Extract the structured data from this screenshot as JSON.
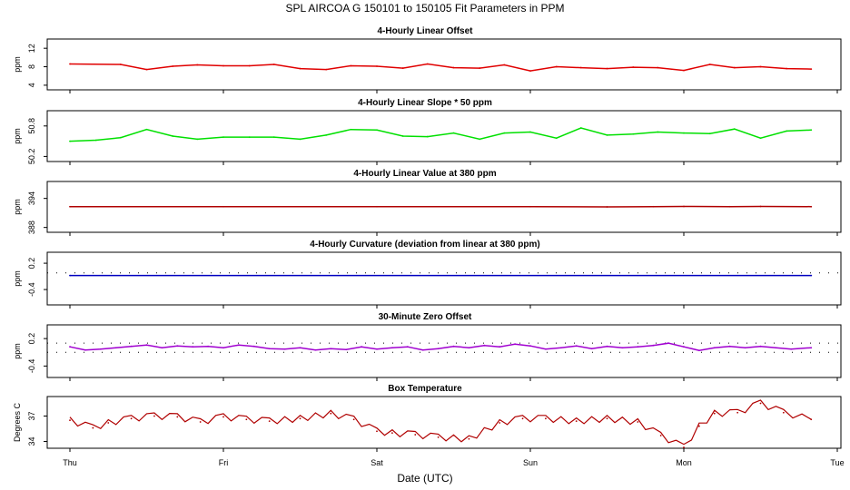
{
  "title": "SPL   AIRCOA G   150101 to 150105   Fit Parameters in PPM",
  "xlabel": "Date (UTC)",
  "chart_data": {
    "type": "line",
    "x_ticks": [
      "Thu",
      "Fri",
      "Sat",
      "Sun",
      "Mon",
      "Tue"
    ],
    "x_range_days": [
      0,
      5
    ],
    "panels": [
      {
        "title": "4-Hourly Linear Offset",
        "ylabel": "ppm",
        "yticks": [
          "4",
          "8",
          "12"
        ],
        "ytick_values": [
          4,
          8,
          12
        ],
        "ylim": [
          3,
          14
        ],
        "color": "#e00000",
        "style": "line",
        "reflines": [],
        "x": [
          0,
          0.33,
          0.5,
          0.67,
          0.83,
          1.0,
          1.17,
          1.33,
          1.5,
          1.67,
          1.83,
          2.0,
          2.17,
          2.33,
          2.5,
          2.67,
          2.83,
          3.0,
          3.17,
          3.33,
          3.5,
          3.67,
          3.83,
          4.0,
          4.17,
          4.33,
          4.5,
          4.67,
          4.83
        ],
        "y": [
          8.6,
          8.5,
          7.4,
          8.1,
          8.4,
          8.2,
          8.2,
          8.5,
          7.6,
          7.4,
          8.2,
          8.1,
          7.7,
          8.6,
          7.8,
          7.7,
          8.4,
          7.1,
          8.0,
          7.8,
          7.6,
          7.9,
          7.8,
          7.2,
          8.5,
          7.8,
          8.0,
          7.6,
          7.5
        ]
      },
      {
        "title": "4-Hourly Linear Slope * 50 ppm",
        "ylabel": "ppm",
        "yticks": [
          "50.2",
          "50.8"
        ],
        "ytick_values": [
          50.2,
          50.8
        ],
        "ylim": [
          50.1,
          51.1
        ],
        "color": "#00e000",
        "style": "line",
        "reflines": [],
        "x": [
          0,
          0.17,
          0.33,
          0.5,
          0.67,
          0.83,
          1.0,
          1.17,
          1.33,
          1.5,
          1.67,
          1.83,
          2.0,
          2.17,
          2.33,
          2.5,
          2.67,
          2.83,
          3.0,
          3.17,
          3.33,
          3.5,
          3.67,
          3.83,
          4.0,
          4.17,
          4.33,
          4.5,
          4.67,
          4.83
        ],
        "y": [
          50.5,
          50.52,
          50.57,
          50.73,
          50.6,
          50.54,
          50.58,
          50.58,
          50.58,
          50.54,
          50.62,
          50.73,
          50.72,
          50.6,
          50.59,
          50.66,
          50.54,
          50.66,
          50.68,
          50.56,
          50.76,
          50.62,
          50.64,
          50.68,
          50.66,
          50.65,
          50.74,
          50.56,
          50.7,
          50.72
        ]
      },
      {
        "title": "4-Hourly Linear Value at 380 ppm",
        "ylabel": "ppm",
        "yticks": [
          "388",
          "394"
        ],
        "ytick_values": [
          388,
          394
        ],
        "ylim": [
          387,
          397.5
        ],
        "color": "#b00000",
        "style": "line",
        "reflines": [],
        "x": [
          0,
          1,
          2,
          3,
          3.5,
          3.8,
          4.0,
          4.3,
          4.5,
          4.83
        ],
        "y": [
          392.3,
          392.3,
          392.3,
          392.3,
          392.25,
          392.3,
          392.35,
          392.3,
          392.35,
          392.3
        ]
      },
      {
        "title": "4-Hourly Curvature (deviation from linear at 380 ppm)",
        "ylabel": "ppm",
        "yticks": [
          "-0.4",
          "0.2"
        ],
        "ytick_values": [
          -0.4,
          0.2
        ],
        "ylim": [
          -0.75,
          0.45
        ],
        "color": "#0000c0",
        "style": "line",
        "reflines": [
          {
            "value": -0.02,
            "style": "dotted"
          }
        ],
        "x": [
          0,
          4.83
        ],
        "y": [
          -0.08,
          -0.08
        ]
      },
      {
        "title": "30-Minute Zero Offset",
        "ylabel": "ppm",
        "yticks": [
          "-0.4",
          "0.2"
        ],
        "ytick_values": [
          -0.4,
          0.2
        ],
        "ylim": [
          -0.65,
          0.5
        ],
        "color": "#a000d0",
        "style": "line",
        "reflines": [
          {
            "value": 0.1,
            "style": "dotted"
          },
          {
            "value": -0.1,
            "style": "dotted"
          }
        ],
        "x": [
          0,
          0.1,
          0.2,
          0.3,
          0.4,
          0.5,
          0.6,
          0.7,
          0.8,
          0.9,
          1.0,
          1.1,
          1.2,
          1.3,
          1.4,
          1.5,
          1.6,
          1.7,
          1.8,
          1.9,
          2.0,
          2.1,
          2.2,
          2.3,
          2.4,
          2.5,
          2.6,
          2.7,
          2.8,
          2.9,
          3.0,
          3.1,
          3.2,
          3.3,
          3.4,
          3.5,
          3.6,
          3.7,
          3.8,
          3.9,
          4.0,
          4.1,
          4.2,
          4.3,
          4.4,
          4.5,
          4.6,
          4.7,
          4.83
        ],
        "y": [
          0.02,
          -0.05,
          -0.03,
          0.0,
          0.03,
          0.06,
          0.0,
          0.04,
          0.02,
          0.03,
          0.0,
          0.06,
          0.03,
          -0.02,
          -0.03,
          0.0,
          -0.05,
          -0.02,
          -0.04,
          0.02,
          -0.03,
          0.0,
          0.02,
          -0.05,
          -0.02,
          0.03,
          0.0,
          0.05,
          0.02,
          0.08,
          0.04,
          -0.03,
          0.0,
          0.04,
          -0.02,
          0.03,
          0.0,
          0.02,
          0.05,
          0.1,
          0.02,
          -0.06,
          0.0,
          0.03,
          0.0,
          0.03,
          0.0,
          -0.03,
          0.0
        ]
      },
      {
        "title": "Box Temperature",
        "ylabel": "Degrees C",
        "yticks": [
          "34",
          "37"
        ],
        "ytick_values": [
          34,
          37
        ],
        "ylim": [
          33.2,
          39.3
        ],
        "color": "#b00000",
        "style": "sawtooth",
        "reflines": [],
        "x": [
          0,
          0.15,
          0.25,
          0.4,
          0.55,
          0.7,
          0.85,
          1.0,
          1.15,
          1.3,
          1.5,
          1.7,
          1.85,
          2.0,
          2.1,
          2.25,
          2.4,
          2.6,
          2.8,
          2.95,
          3.1,
          3.3,
          3.5,
          3.7,
          3.85,
          4.0,
          4.1,
          4.2,
          4.35,
          4.5,
          4.65,
          4.83
        ],
        "y": [
          36.5,
          35.6,
          36.2,
          36.7,
          37.0,
          36.9,
          36.3,
          36.9,
          36.6,
          36.4,
          36.7,
          37.3,
          36.6,
          35.2,
          35.0,
          34.8,
          34.5,
          34.3,
          36.2,
          36.7,
          36.7,
          36.4,
          36.7,
          36.3,
          34.7,
          33.3,
          35.8,
          37.3,
          37.4,
          38.5,
          37.4,
          36.6
        ]
      }
    ]
  }
}
